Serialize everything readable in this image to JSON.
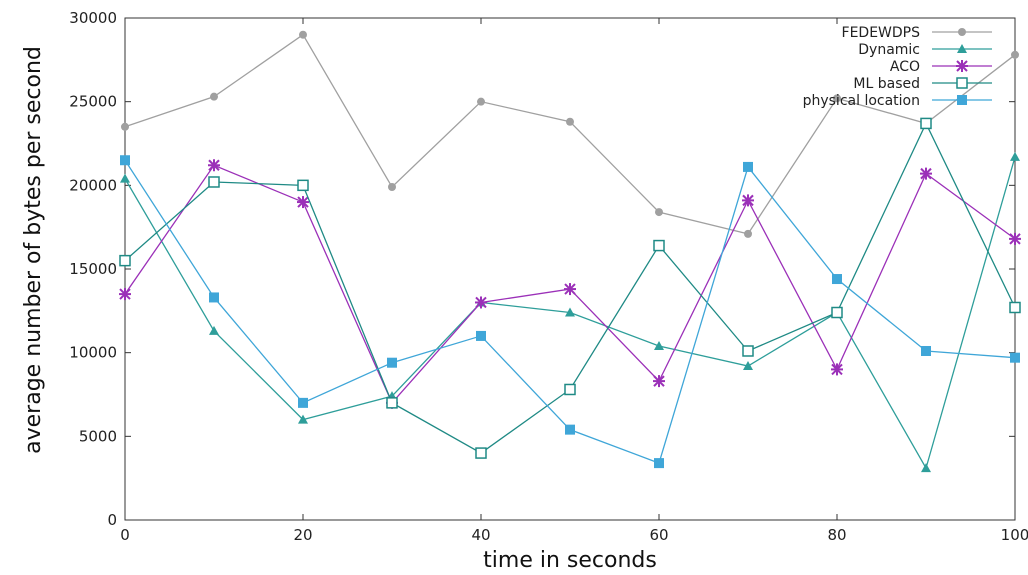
{
  "chart_data": {
    "type": "line",
    "xlabel": "time in seconds",
    "ylabel": "average number of bytes per second",
    "xlim": [
      0,
      100
    ],
    "ylim": [
      0,
      30000
    ],
    "x_ticks": [
      "0",
      "20",
      "40",
      "60",
      "80",
      "100"
    ],
    "y_ticks": [
      "0",
      "5000",
      "10000",
      "15000",
      "20000",
      "25000",
      "30000"
    ],
    "grid": false,
    "legend_position": "top-right",
    "x": [
      0,
      10,
      20,
      30,
      40,
      50,
      60,
      70,
      80,
      90,
      100
    ],
    "series": [
      {
        "name": "FEDEWDPS",
        "color": "#a0a0a0",
        "marker": "circle",
        "values": [
          23500,
          25300,
          29000,
          19900,
          25000,
          23800,
          18400,
          17100,
          25200,
          23700,
          27800
        ]
      },
      {
        "name": "Dynamic",
        "color": "#2e9e9a",
        "marker": "triangle",
        "values": [
          20400,
          11300,
          6000,
          7400,
          13000,
          12400,
          10400,
          9200,
          12400,
          3100,
          21700
        ]
      },
      {
        "name": "ACO",
        "color": "#9b30b8",
        "marker": "star",
        "values": [
          13500,
          21200,
          19000,
          7000,
          13000,
          13800,
          8300,
          19100,
          9000,
          20700,
          16800
        ]
      },
      {
        "name": "ML based",
        "color": "#1f8a85",
        "marker": "square-open",
        "values": [
          15500,
          20200,
          20000,
          7000,
          4000,
          7800,
          16400,
          10100,
          12400,
          23700,
          12700
        ]
      },
      {
        "name": "physical location",
        "color": "#3fa6d8",
        "marker": "square-filled",
        "values": [
          21500,
          13300,
          7000,
          9400,
          11000,
          5400,
          3400,
          21100,
          14400,
          10100,
          9700
        ]
      }
    ]
  }
}
